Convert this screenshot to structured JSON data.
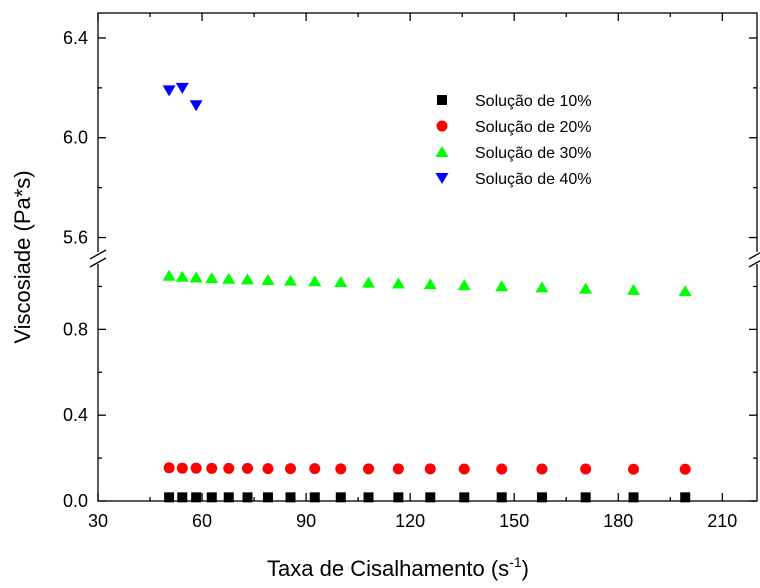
{
  "chart_data": {
    "type": "scatter",
    "xlabel": "Taxa de Cisalhamento (s",
    "xlabel_sup": "-1",
    "xlabel_suffix": ")",
    "ylabel": "Viscosiade (Pa*s)",
    "xlim": [
      30,
      220
    ],
    "xticks": [
      "30",
      "60",
      "90",
      "120",
      "150",
      "180",
      "210"
    ],
    "y_axis_break": true,
    "ylim_lower": [
      0,
      1.1
    ],
    "ylim_upper": [
      5.55,
      6.5
    ],
    "yticks_lower": [
      "0.0",
      "0.4",
      "0.8"
    ],
    "yticks_upper": [
      "5.6",
      "6.0",
      "6.4"
    ],
    "legend_position": "top-right",
    "series": [
      {
        "name": "Solução de 10%",
        "marker": "square",
        "color": "#000000",
        "x": [
          50.5,
          54.3,
          58.3,
          62.8,
          67.7,
          73.1,
          79.0,
          85.5,
          92.5,
          100.0,
          108.0,
          116.6,
          125.8,
          135.6,
          146.4,
          158.0,
          170.6,
          184.4,
          199.3
        ],
        "y": [
          0.017,
          0.017,
          0.017,
          0.017,
          0.017,
          0.017,
          0.017,
          0.017,
          0.017,
          0.017,
          0.017,
          0.017,
          0.017,
          0.017,
          0.017,
          0.017,
          0.017,
          0.017,
          0.017
        ]
      },
      {
        "name": "Solução de 20%",
        "marker": "circle",
        "color": "#ff0000",
        "x": [
          50.5,
          54.3,
          58.3,
          62.8,
          67.7,
          73.1,
          79.0,
          85.5,
          92.5,
          100.0,
          108.0,
          116.6,
          125.8,
          135.6,
          146.4,
          158.0,
          170.6,
          184.4,
          199.3
        ],
        "y": [
          0.155,
          0.153,
          0.153,
          0.152,
          0.152,
          0.152,
          0.151,
          0.151,
          0.151,
          0.15,
          0.15,
          0.15,
          0.15,
          0.149,
          0.149,
          0.149,
          0.149,
          0.148,
          0.148
        ]
      },
      {
        "name": "Solução de 30%",
        "marker": "triangle-up",
        "color": "#00ff00",
        "x": [
          50.5,
          54.3,
          58.3,
          62.8,
          67.7,
          73.1,
          79.0,
          85.5,
          92.5,
          100.0,
          108.0,
          116.6,
          125.8,
          135.6,
          146.4,
          158.0,
          170.6,
          184.4,
          199.3
        ],
        "y": [
          1.05,
          1.045,
          1.042,
          1.039,
          1.036,
          1.033,
          1.03,
          1.027,
          1.024,
          1.021,
          1.018,
          1.014,
          1.01,
          1.006,
          1.001,
          0.996,
          0.99,
          0.984,
          0.978
        ]
      },
      {
        "name": "Solução de 40%",
        "marker": "triangle-down",
        "color": "#0000ff",
        "x": [
          50.5,
          54.3,
          58.3
        ],
        "y": [
          6.19,
          6.2,
          6.13
        ]
      }
    ]
  }
}
